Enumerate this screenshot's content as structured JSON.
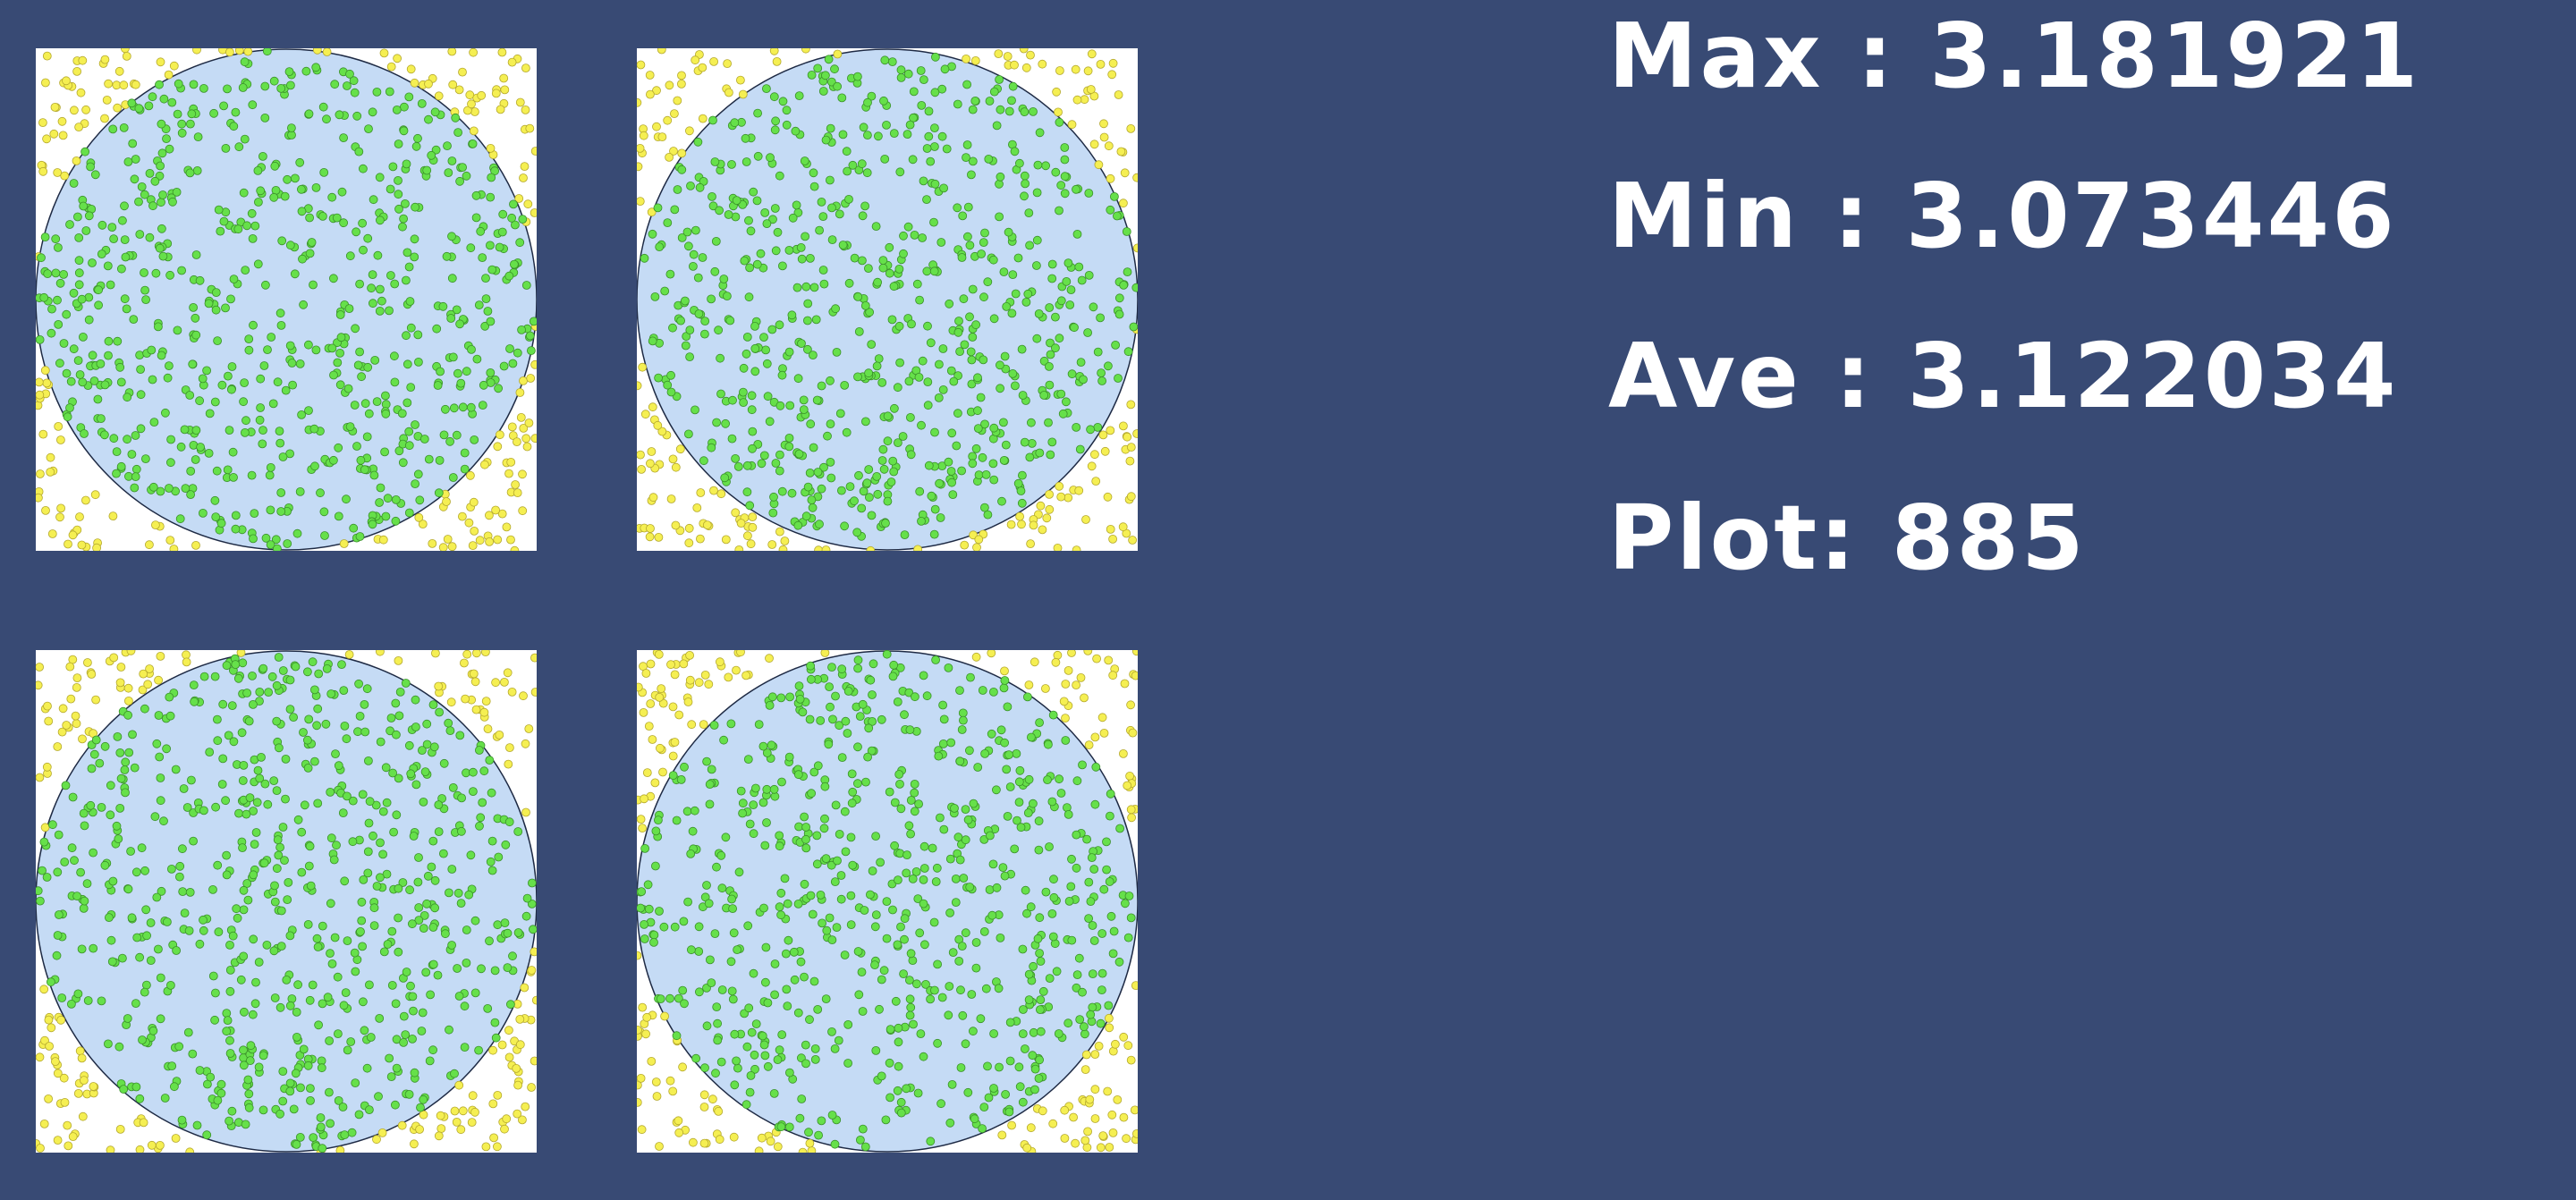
{
  "colors": {
    "background": "#384a74",
    "panel_background": "#ffffff",
    "circle_fill": "#c5dbf5",
    "circle_stroke": "#1e2a44",
    "inside_point": "#66e04a",
    "outside_point": "#f5ef52"
  },
  "stats": {
    "max": "Max : 3.181921",
    "min": "Min : 3.073446",
    "ave": "Ave : 3.122034",
    "plot": "Plot: 885"
  },
  "simulation": {
    "plot_count": 885,
    "panel_count": 4
  }
}
